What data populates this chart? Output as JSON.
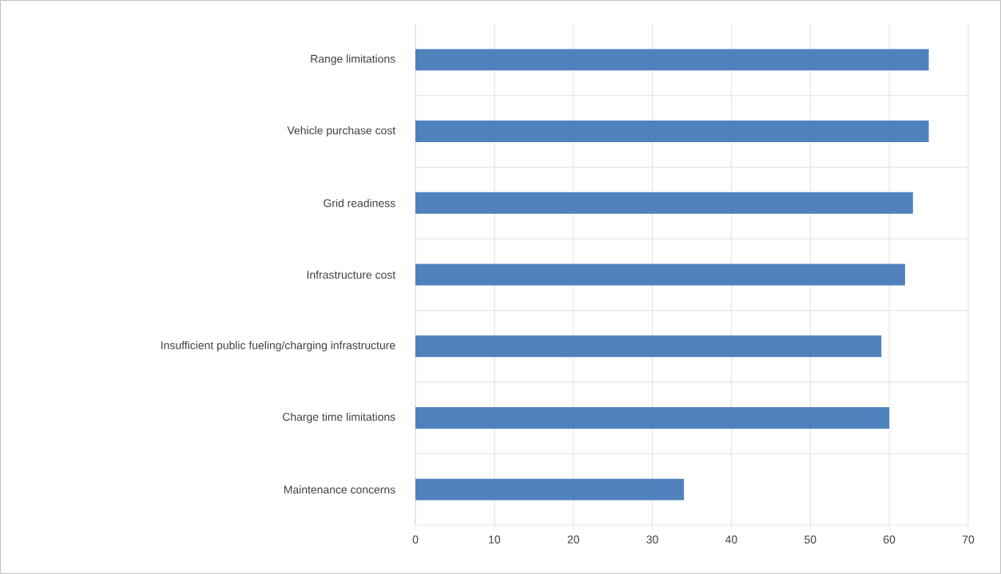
{
  "chart_data": {
    "type": "bar",
    "orientation": "horizontal",
    "categories": [
      "Range limitations",
      "Vehicle purchase cost",
      "Grid readiness",
      "Infrastructure cost",
      "Insufficient public fueling/charging infrastructure",
      "Charge time limitations",
      "Maintenance concerns"
    ],
    "values": [
      65,
      65,
      63,
      62,
      59,
      60,
      34
    ],
    "color": "#4f81bd",
    "xlim": [
      0,
      70
    ],
    "xticks": [
      0,
      10,
      20,
      30,
      40,
      50,
      60,
      70
    ],
    "grid": true
  }
}
